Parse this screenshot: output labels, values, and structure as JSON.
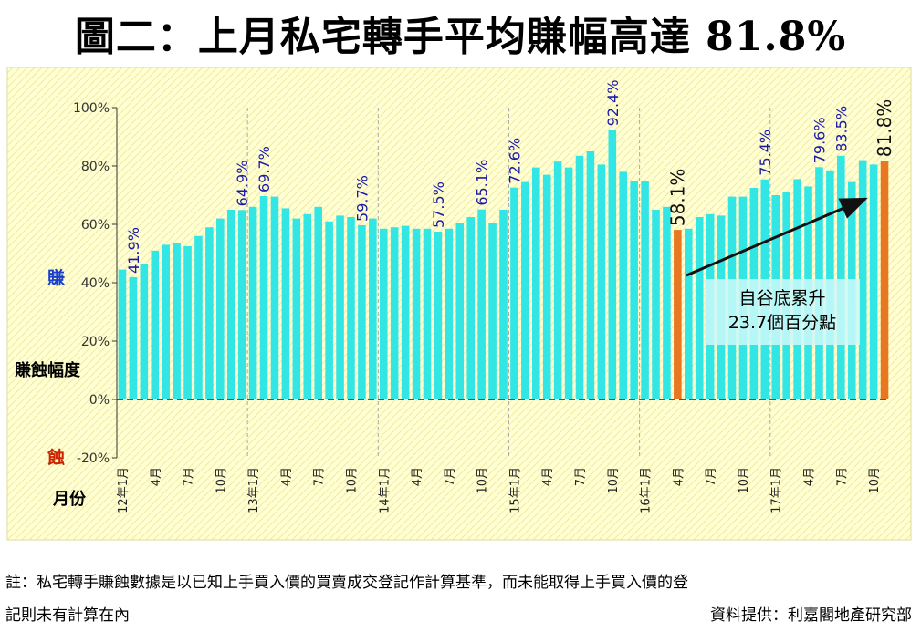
{
  "title": "圖二：上月私宅轉手平均賺幅高達 81.8%",
  "notes": {
    "line1": "註：私宅轉手賺蝕數據是以已知上手買入價的買賣成交登記作計算基準，而未能取得上手買入價的登",
    "line2": "記則未有計算在內",
    "source": "資料提供：利嘉閣地產研究部"
  },
  "colors": {
    "bar": "#33e6e6",
    "highlight": "#e87722",
    "background": "#ffffd2",
    "label_blue": "#1a1aa6",
    "gain_label": "#1a3fcc",
    "loss_label": "#cc2200"
  },
  "chart_data": {
    "type": "bar",
    "ylim": [
      -20,
      100
    ],
    "yticks": [
      "100%",
      "80%",
      "60%",
      "40%",
      "20%",
      "0%",
      "-20%"
    ],
    "ytick_values": [
      100,
      80,
      60,
      40,
      20,
      0,
      -20
    ],
    "ylabel_gain": "賺",
    "ylabel_mid": "賺蝕幅度",
    "ylabel_loss": "蝕",
    "xlabel": "月份",
    "xticks": [
      {
        "index": 0,
        "label": "12年1月"
      },
      {
        "index": 3,
        "label": "4月"
      },
      {
        "index": 6,
        "label": "7月"
      },
      {
        "index": 9,
        "label": "10月"
      },
      {
        "index": 12,
        "label": "13年1月"
      },
      {
        "index": 15,
        "label": "4月"
      },
      {
        "index": 18,
        "label": "7月"
      },
      {
        "index": 21,
        "label": "10月"
      },
      {
        "index": 24,
        "label": "14年1月"
      },
      {
        "index": 27,
        "label": "4月"
      },
      {
        "index": 30,
        "label": "7月"
      },
      {
        "index": 33,
        "label": "10月"
      },
      {
        "index": 36,
        "label": "15年1月"
      },
      {
        "index": 39,
        "label": "4月"
      },
      {
        "index": 42,
        "label": "7月"
      },
      {
        "index": 45,
        "label": "10月"
      },
      {
        "index": 48,
        "label": "16年1月"
      },
      {
        "index": 51,
        "label": "4月"
      },
      {
        "index": 54,
        "label": "7月"
      },
      {
        "index": 57,
        "label": "10月"
      },
      {
        "index": 60,
        "label": "17年1月"
      },
      {
        "index": 63,
        "label": "4月"
      },
      {
        "index": 66,
        "label": "7月"
      },
      {
        "index": 69,
        "label": "10月"
      }
    ],
    "year_separators": [
      12,
      24,
      36,
      48,
      60
    ],
    "values": [
      44.5,
      41.9,
      46.5,
      51,
      53,
      53.5,
      52.5,
      56,
      59,
      62,
      65,
      64.9,
      66,
      69.7,
      69.5,
      65.5,
      62,
      63.5,
      66,
      61,
      63,
      62.5,
      59.7,
      62,
      58.5,
      59,
      59.5,
      58.5,
      58.5,
      57.5,
      58.5,
      60.5,
      62.5,
      65.1,
      60.5,
      65,
      72.6,
      74.5,
      79.5,
      77,
      81.5,
      79.5,
      83.5,
      85,
      80.5,
      92.4,
      78,
      75,
      75,
      65,
      66,
      58.1,
      58.5,
      62.5,
      63.5,
      63,
      69.5,
      69.5,
      72.5,
      75.4,
      70,
      71,
      75.5,
      73,
      79.6,
      78.5,
      83.5,
      74.5,
      82,
      80.5,
      81.8
    ],
    "highlight_indices": [
      51,
      70
    ],
    "data_labels": [
      {
        "index": 1,
        "text": "41.9%",
        "style": "blue"
      },
      {
        "index": 11,
        "text": "64.9%",
        "style": "blue"
      },
      {
        "index": 13,
        "text": "69.7%",
        "style": "blue"
      },
      {
        "index": 22,
        "text": "59.7%",
        "style": "blue"
      },
      {
        "index": 29,
        "text": "57.5%",
        "style": "blue"
      },
      {
        "index": 33,
        "text": "65.1%",
        "style": "blue"
      },
      {
        "index": 36,
        "text": "72.6%",
        "style": "blue"
      },
      {
        "index": 45,
        "text": "92.4%",
        "style": "blue"
      },
      {
        "index": 51,
        "text": "58.1%",
        "style": "black"
      },
      {
        "index": 59,
        "text": "75.4%",
        "style": "blue"
      },
      {
        "index": 64,
        "text": "79.6%",
        "style": "blue"
      },
      {
        "index": 66,
        "text": "83.5%",
        "style": "blue"
      },
      {
        "index": 70,
        "text": "81.8%",
        "style": "black"
      }
    ],
    "annotation": {
      "line1": "自谷底累升",
      "line2": "23.7個百分點"
    }
  }
}
